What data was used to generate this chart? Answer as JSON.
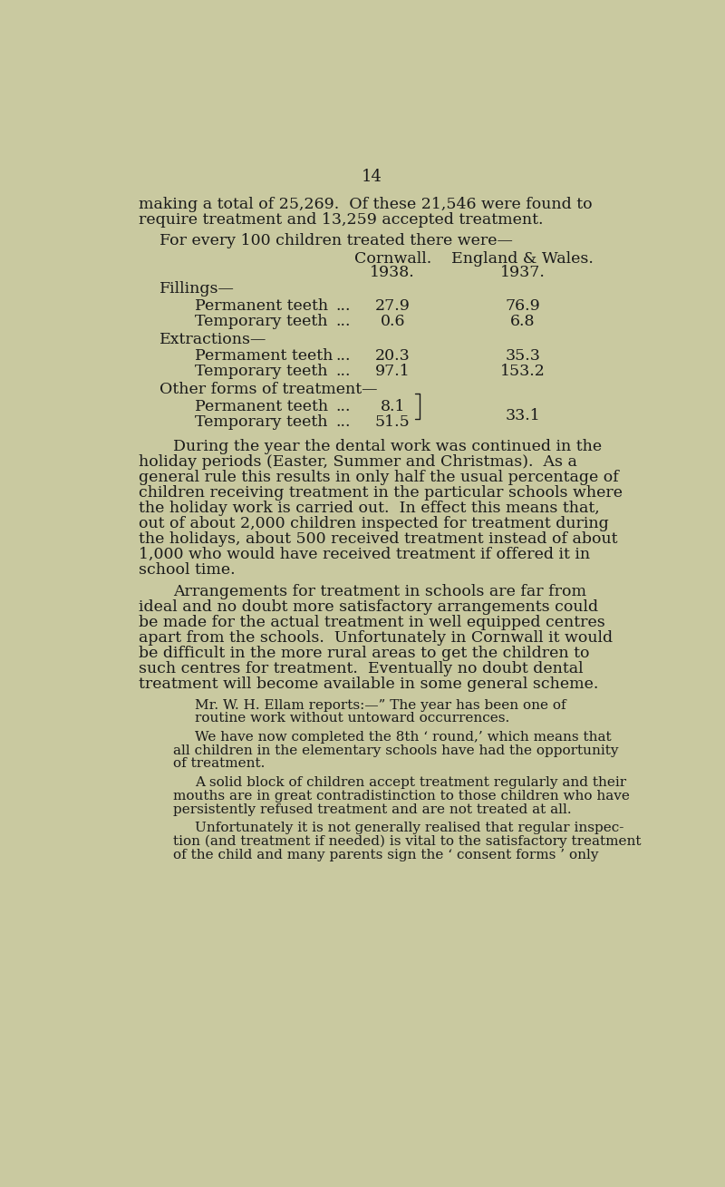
{
  "bg_color": "#c9c9a0",
  "text_color": "#1a1a1a",
  "page_number": "14",
  "page_number_fontsize": 13,
  "body_fontsize": 12.5,
  "small_fontsize": 11.0,
  "title_line1": "making a total of 25,269.  Of these 21,546 were found to",
  "title_line2": "require treatment and 13,259 accepted treatment.",
  "for_line": "For every 100 children treated there were—",
  "col1_header1": "Cornwall.",
  "col1_header2": "1938.",
  "col2_header1": "England & Wales.",
  "col2_header2": "1937.",
  "fillings_header": "Fillings—",
  "perm_teeth_label": "Permanent teeth",
  "temp_teeth_label": "Temporary teeth",
  "extractions_header": "Extractions—",
  "other_header": "Other forms of treatment—",
  "perm_teeth_label2": "Permament teeth",
  "temp_teeth_label2": "Temporary teeth",
  "perm_teeth_label3": "Permanent teeth",
  "temp_teeth_label3": "Temporary teeth",
  "dots": "...",
  "fillings_perm_cornwall": "27.9",
  "fillings_perm_ew": "76.9",
  "fillings_temp_cornwall": "0.6",
  "fillings_temp_ew": "6.8",
  "extract_perm_cornwall": "20.3",
  "extract_perm_ew": "35.3",
  "extract_temp_cornwall": "97.1",
  "extract_temp_ew": "153.2",
  "other_perm_cornwall": "8.1",
  "other_temp_cornwall": "51.5",
  "other_ew": "33.1",
  "lines1": [
    "During the year the dental work was continued in the",
    "holiday periods (Easter, Summer and Christmas).  As a",
    "general rule this results in only half the usual percentage of",
    "children receiving treatment in the particular schools where",
    "the holiday work is carried out.  In effect this means that,",
    "out of about 2,000 children inspected for treatment during",
    "the holidays, about 500 received treatment instead of about",
    "1,000 who would have received treatment if offered it in",
    "school time."
  ],
  "lines2": [
    "Arrangements for treatment in schools are far from",
    "ideal and no doubt more satisfactory arrangements could",
    "be made for the actual treatment in well equipped centres",
    "apart from the schools.  Unfortunately in Cornwall it would",
    "be difficult in the more rural areas to get the children to",
    "such centres for treatment.  Eventually no doubt dental",
    "treatment will become available in some general scheme."
  ],
  "lines3": [
    "Mr. W. H. Ellam reports:—” The year has been one of",
    "routine work without untoward occurrences."
  ],
  "lines4": [
    "We have now completed the 8th ‘ round,’ which means that",
    "all children in the elementary schools have had the opportunity",
    "of treatment."
  ],
  "lines5": [
    "A solid block of children accept treatment regularly and their",
    "mouths are in great contradistinction to those children who have",
    "persistently refused treatment and are not treated at all."
  ],
  "lines6": [
    "Unfortunately it is not generally realised that regular inspec-",
    "tion (and treatment if needed) is vital to the satisfactory treatment",
    "of the child and many parents sign the ‘ consent forms ’ only"
  ]
}
